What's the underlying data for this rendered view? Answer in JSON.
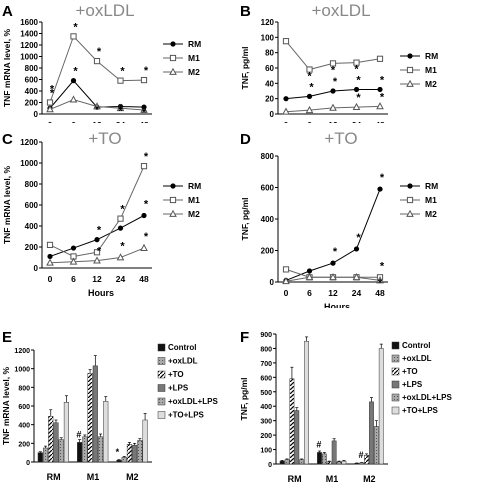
{
  "chart_data": [
    {
      "panel": "A",
      "title": "+oxLDL",
      "type": "line",
      "xlabel": "Hours",
      "ylabel": "TNF mRNA level, %",
      "categories": [
        "0",
        "6",
        "12",
        "24",
        "48"
      ],
      "ylim": [
        0,
        1600
      ],
      "yticks": [
        0,
        200,
        400,
        600,
        800,
        1000,
        1200,
        1400,
        1600
      ],
      "legend": "right",
      "series": [
        {
          "name": "RM",
          "marker": "circle",
          "values": [
            100,
            580,
            120,
            130,
            120
          ]
        },
        {
          "name": "M1",
          "marker": "square",
          "values": [
            200,
            1350,
            920,
            580,
            590
          ]
        },
        {
          "name": "M2",
          "marker": "triangle",
          "values": [
            80,
            250,
            130,
            100,
            70
          ]
        }
      ],
      "annotations": [
        "*",
        "*",
        "*",
        "*",
        "*",
        "*",
        "*",
        "*",
        "*",
        "*",
        "*",
        "*"
      ]
    },
    {
      "panel": "B",
      "title": "+oxLDL",
      "type": "line",
      "xlabel": "Hours",
      "ylabel": "TNF, pg/ml",
      "categories": [
        "0",
        "6",
        "12",
        "24",
        "48"
      ],
      "ylim": [
        0,
        120
      ],
      "yticks": [
        0,
        20,
        40,
        60,
        80,
        100,
        120
      ],
      "legend": "right",
      "series": [
        {
          "name": "RM",
          "marker": "circle",
          "values": [
            20,
            23,
            30,
            32,
            32
          ]
        },
        {
          "name": "M1",
          "marker": "square",
          "values": [
            95,
            58,
            66,
            67,
            72
          ]
        },
        {
          "name": "M2",
          "marker": "triangle",
          "values": [
            3,
            5,
            8,
            9,
            10
          ]
        }
      ],
      "annotations": [
        "*",
        "*",
        "*",
        "*",
        "*",
        "*",
        "*",
        "*",
        "*"
      ]
    },
    {
      "panel": "C",
      "title": "+TO",
      "type": "line",
      "xlabel": "Hours",
      "ylabel": "TNF mRNA level, %",
      "categories": [
        "0",
        "6",
        "12",
        "24",
        "48"
      ],
      "ylim": [
        0,
        1200
      ],
      "yticks": [
        0,
        200,
        400,
        600,
        800,
        1000,
        1200
      ],
      "legend": "right",
      "series": [
        {
          "name": "RM",
          "marker": "circle",
          "values": [
            110,
            190,
            270,
            380,
            500
          ]
        },
        {
          "name": "M1",
          "marker": "square",
          "values": [
            220,
            110,
            150,
            470,
            970
          ]
        },
        {
          "name": "M2",
          "marker": "triangle",
          "values": [
            50,
            60,
            70,
            100,
            190
          ]
        }
      ],
      "annotations": [
        "*",
        "*",
        "*",
        "*",
        "*",
        "*",
        "*"
      ]
    },
    {
      "panel": "D",
      "title": "+TO",
      "type": "line",
      "xlabel": "Hours",
      "ylabel": "TNF, pg/ml",
      "categories": [
        "0",
        "6",
        "12",
        "24",
        "48"
      ],
      "ylim": [
        0,
        800
      ],
      "yticks": [
        0,
        200,
        400,
        600,
        800
      ],
      "legend": "right",
      "series": [
        {
          "name": "RM",
          "marker": "circle",
          "values": [
            10,
            70,
            120,
            210,
            590
          ]
        },
        {
          "name": "M1",
          "marker": "square",
          "values": [
            80,
            30,
            30,
            30,
            30
          ]
        },
        {
          "name": "M2",
          "marker": "triangle",
          "values": [
            5,
            30,
            30,
            30,
            10
          ]
        }
      ],
      "annotations": [
        "*",
        "*",
        "*",
        "*",
        "*"
      ]
    },
    {
      "panel": "E",
      "type": "bar",
      "ylabel": "TNF mRNA level, %",
      "categories": [
        "RM",
        "M1",
        "M2"
      ],
      "ylim": [
        0,
        1200
      ],
      "yticks": [
        0,
        200,
        400,
        600,
        800,
        1000,
        1200
      ],
      "legend": "right",
      "series": [
        {
          "name": "Control",
          "pattern": "black",
          "values": [
            100,
            210,
            20
          ]
        },
        {
          "name": "+oxLDL",
          "pattern": "gray-dots",
          "values": [
            150,
            270,
            50
          ]
        },
        {
          "name": "+TO",
          "pattern": "hatch",
          "values": [
            490,
            950,
            190
          ]
        },
        {
          "name": "+LPS",
          "pattern": "gray",
          "values": [
            420,
            1030,
            180
          ]
        },
        {
          "name": "+oxLDL+LPS",
          "pattern": "gray-dots",
          "values": [
            240,
            270,
            230
          ]
        },
        {
          "name": "+TO+LPS",
          "pattern": "light",
          "values": [
            640,
            650,
            450
          ]
        }
      ],
      "errors": [
        [
          10,
          30,
          5
        ],
        [
          20,
          20,
          10
        ],
        [
          70,
          40,
          20
        ],
        [
          30,
          110,
          20
        ],
        [
          20,
          30,
          20
        ],
        [
          70,
          50,
          70
        ]
      ],
      "annotations": [
        "#",
        "*"
      ]
    },
    {
      "panel": "F",
      "type": "bar",
      "ylabel": "TNF, pg/ml",
      "categories": [
        "RM",
        "M1",
        "M2"
      ],
      "ylim": [
        0,
        900
      ],
      "yticks": [
        0,
        100,
        200,
        300,
        400,
        500,
        600,
        700,
        800,
        900
      ],
      "legend": "right",
      "series": [
        {
          "name": "Control",
          "pattern": "black",
          "values": [
            20,
            80,
            5
          ]
        },
        {
          "name": "+oxLDL",
          "pattern": "gray-dots",
          "values": [
            30,
            70,
            8
          ]
        },
        {
          "name": "+TO",
          "pattern": "hatch",
          "values": [
            590,
            15,
            60
          ]
        },
        {
          "name": "+LPS",
          "pattern": "gray",
          "values": [
            370,
            160,
            430
          ]
        },
        {
          "name": "+oxLDL+LPS",
          "pattern": "gray-dots",
          "values": [
            30,
            15,
            260
          ]
        },
        {
          "name": "+TO+LPS",
          "pattern": "light",
          "values": [
            850,
            20,
            800
          ]
        }
      ],
      "errors": [
        [
          5,
          10,
          2
        ],
        [
          5,
          10,
          2
        ],
        [
          80,
          5,
          10
        ],
        [
          20,
          15,
          30
        ],
        [
          5,
          5,
          40
        ],
        [
          30,
          5,
          30
        ]
      ],
      "annotations": [
        "#",
        "#"
      ]
    }
  ]
}
